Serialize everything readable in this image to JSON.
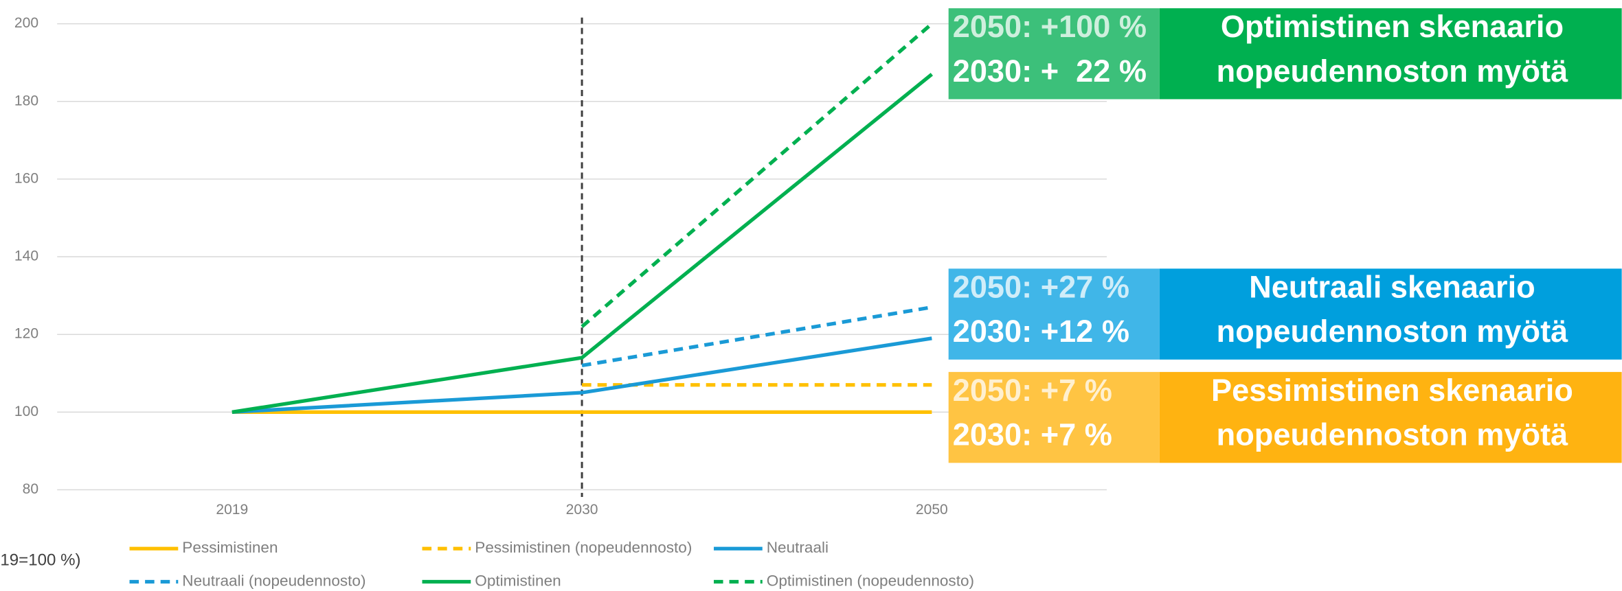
{
  "chart_data": {
    "type": "line",
    "y_axis_label": "19=100 %)",
    "categories": [
      "2019",
      "2030",
      "2050"
    ],
    "ylim": [
      80,
      200
    ],
    "yticks": [
      80,
      100,
      120,
      140,
      160,
      180,
      200
    ],
    "grid": true,
    "series": [
      {
        "name": "Pessimistinen",
        "color": "#ffc000",
        "dashed": false,
        "values": [
          100,
          100,
          100
        ]
      },
      {
        "name": "Pessimistinen (nopeudennosto)",
        "color": "#ffc000",
        "dashed": true,
        "values": [
          null,
          107,
          107
        ]
      },
      {
        "name": "Neutraali",
        "color": "#1a9ad6",
        "dashed": false,
        "values": [
          100,
          105,
          119
        ]
      },
      {
        "name": "Neutraali (nopeudennosto)",
        "color": "#1a9ad6",
        "dashed": true,
        "values": [
          null,
          112,
          127
        ]
      },
      {
        "name": "Optimistinen",
        "color": "#00b050",
        "dashed": false,
        "values": [
          100,
          114,
          187
        ]
      },
      {
        "name": "Optimistinen (nopeudennosto)",
        "color": "#00b050",
        "dashed": true,
        "values": [
          null,
          122,
          200
        ]
      }
    ],
    "annotations": [
      {
        "figures": [
          "2050: +100 %",
          "2030: +  22 %"
        ],
        "title": [
          "Optimistinen skenaario",
          "nopeudennoston myötä"
        ],
        "color": "#00b050",
        "light": "#3cc07a"
      },
      {
        "figures": [
          "2050: +27 %",
          "2030: +12 %"
        ],
        "title": [
          "Neutraali skenaario",
          "nopeudennoston myötä"
        ],
        "color": "#009fdd",
        "light": "#40b6e8"
      },
      {
        "figures": [
          "2050: +7 %",
          "2030: +7 %"
        ],
        "title": [
          "Pessimistinen skenaario",
          "nopeudennoston myötä"
        ],
        "color": "#ffb311",
        "light": "#ffc443"
      }
    ]
  }
}
